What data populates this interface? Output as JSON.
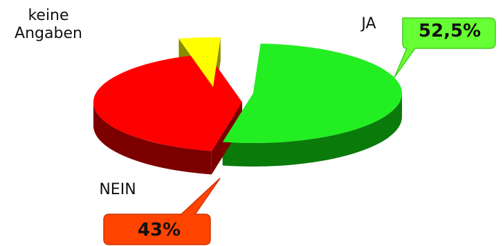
{
  "chart_data": {
    "type": "pie",
    "categories": [
      "JA",
      "NEIN",
      "keine Angaben"
    ],
    "values": [
      52.5,
      43,
      4.5
    ],
    "colors": [
      "#22ee22",
      "#ff0000",
      "#ffff00"
    ],
    "data_labels": [
      "52,5%",
      "43%",
      ""
    ],
    "label_keine_line1": "keine",
    "label_keine_line2": "Angaben"
  }
}
